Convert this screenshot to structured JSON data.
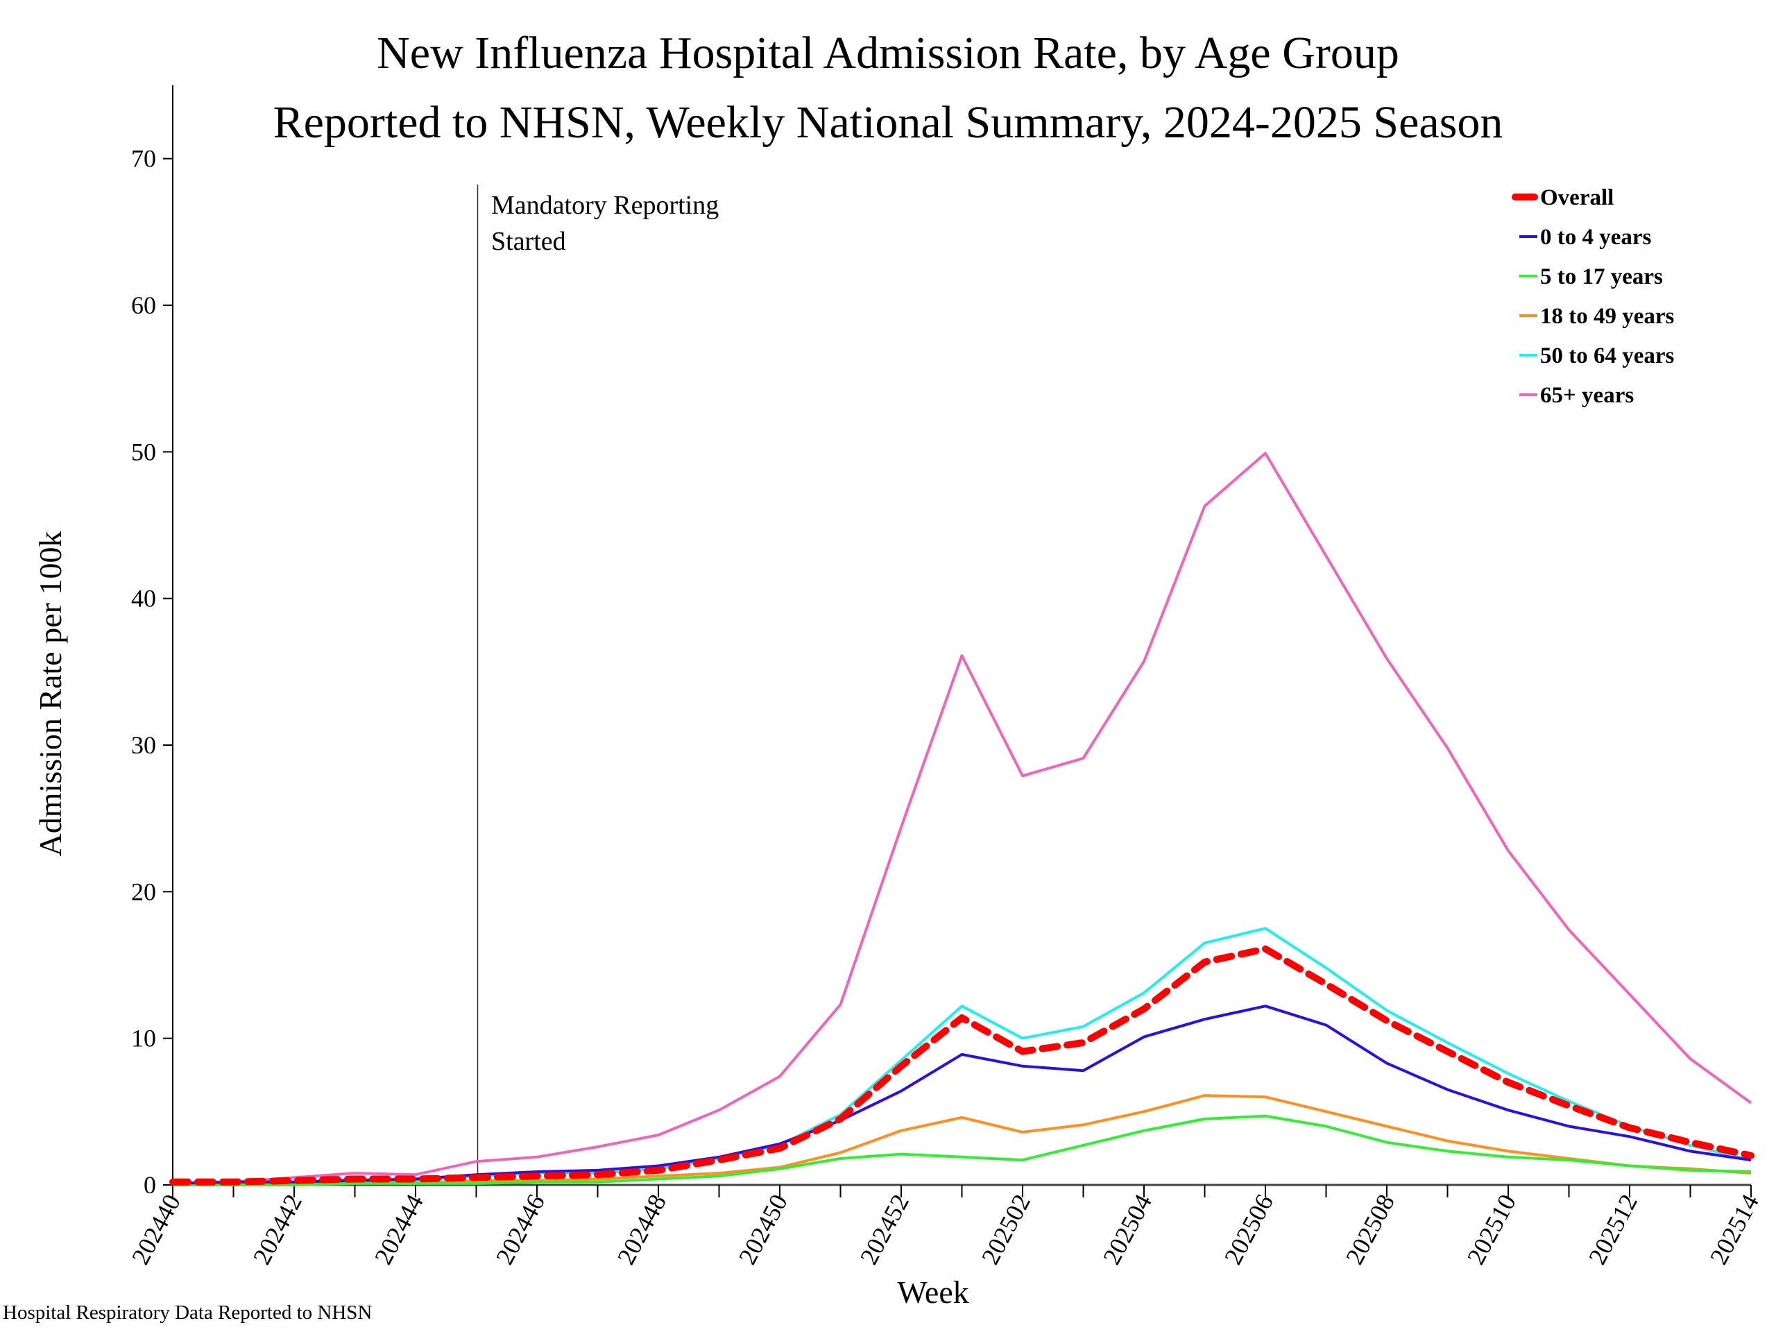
{
  "chart_data": {
    "type": "line",
    "title": "New Influenza Hospital Admission Rate, by Age Group",
    "subtitle": "Reported to NHSN, Weekly National Summary, 2024-2025 Season",
    "xlabel": "Week",
    "ylabel": "Admission Rate per 100k",
    "ylim": [
      0,
      75
    ],
    "yticks": [
      0,
      10,
      20,
      30,
      40,
      50,
      60,
      70
    ],
    "grid": false,
    "legend_position": "top-right",
    "x": [
      "202440",
      "202441",
      "202442",
      "202443",
      "202444",
      "202445",
      "202446",
      "202447",
      "202448",
      "202449",
      "202450",
      "202451",
      "202452",
      "202501",
      "202502",
      "202503",
      "202504",
      "202505",
      "202506",
      "202507",
      "202508",
      "202509",
      "202510",
      "202511",
      "202512",
      "202513",
      "202514"
    ],
    "xtick_labels": [
      "202440",
      "202442",
      "202444",
      "202446",
      "202448",
      "202450",
      "202452",
      "202502",
      "202504",
      "202506",
      "202508",
      "202510",
      "202512",
      "202514"
    ],
    "annotation": {
      "text_line1": "Mandatory Reporting",
      "text_line2": "Started",
      "week": "202445"
    },
    "series": [
      {
        "name": "Overall",
        "color": "#ff0000",
        "dashed": true,
        "values": [
          0.2,
          0.2,
          0.3,
          0.4,
          0.4,
          0.5,
          0.6,
          0.7,
          1.0,
          1.7,
          2.5,
          4.5,
          8.1,
          11.4,
          9.1,
          9.7,
          12.0,
          15.2,
          16.1,
          13.7,
          11.2,
          9.1,
          7.0,
          5.4,
          3.9,
          2.9,
          2.0
        ]
      },
      {
        "name": "0 to 4 years",
        "color": "#2a0fe8",
        "dashed": false,
        "values": [
          0.1,
          0.2,
          0.2,
          0.3,
          0.4,
          0.7,
          0.9,
          1.0,
          1.3,
          1.9,
          2.8,
          4.4,
          6.4,
          8.9,
          8.1,
          7.8,
          10.1,
          11.3,
          12.2,
          10.9,
          8.3,
          6.5,
          5.1,
          4.0,
          3.3,
          2.3,
          1.7
        ]
      },
      {
        "name": "5 to 17 years",
        "color": "#33ee33",
        "dashed": false,
        "values": [
          0.0,
          0.0,
          0.0,
          0.1,
          0.1,
          0.1,
          0.2,
          0.2,
          0.4,
          0.6,
          1.1,
          1.8,
          2.1,
          1.9,
          1.7,
          2.7,
          3.7,
          4.5,
          4.7,
          4.0,
          2.9,
          2.3,
          1.9,
          1.7,
          1.3,
          1.0,
          0.9
        ]
      },
      {
        "name": "18 to 49 years",
        "color": "#ff9020",
        "dashed": false,
        "values": [
          0.0,
          0.0,
          0.1,
          0.2,
          0.1,
          0.3,
          0.3,
          0.4,
          0.6,
          0.8,
          1.2,
          2.2,
          3.7,
          4.6,
          3.6,
          4.1,
          5.0,
          6.1,
          6.0,
          5.0,
          4.0,
          3.0,
          2.3,
          1.8,
          1.3,
          1.1,
          0.8
        ]
      },
      {
        "name": "50 to 64 years",
        "color": "#22eeee",
        "dashed": false,
        "values": [
          0.0,
          0.1,
          0.2,
          0.4,
          0.3,
          0.6,
          0.8,
          0.8,
          1.1,
          1.8,
          2.7,
          4.8,
          8.5,
          12.2,
          10.0,
          10.8,
          13.1,
          16.5,
          17.5,
          14.8,
          11.9,
          9.7,
          7.6,
          5.7,
          4.0,
          2.7,
          1.7
        ]
      },
      {
        "name": "65+ years",
        "color": "#ee66bb",
        "dashed": false,
        "values": [
          0.1,
          0.2,
          0.5,
          0.8,
          0.7,
          1.6,
          1.9,
          2.6,
          3.4,
          5.1,
          7.4,
          12.3,
          24.4,
          36.1,
          27.9,
          29.1,
          35.7,
          46.3,
          49.9,
          42.9,
          35.9,
          29.8,
          22.8,
          17.4,
          13.0,
          8.6,
          5.6
        ]
      }
    ]
  },
  "footer": "Hospital Respiratory Data Reported to NHSN"
}
